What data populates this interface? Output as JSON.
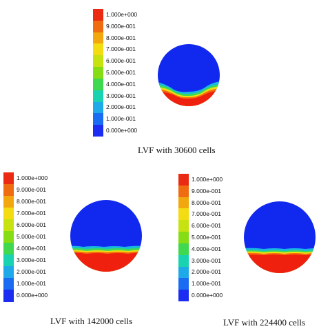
{
  "figure": {
    "panels": [
      {
        "caption": "LVF with 30600 cells",
        "colorbar_ticks": [
          "1.000e+000",
          "9.000e-001",
          "8.000e-001",
          "7.000e-001",
          "6.000e-001",
          "5.000e-001",
          "4.000e-001",
          "3.000e-001",
          "2.000e-001",
          "1.000e-001",
          "0.000e+000"
        ]
      },
      {
        "caption": "LVF with 142000 cells",
        "colorbar_ticks": [
          "1.000e+000",
          "9.000e-001",
          "8.000e-001",
          "7.000e-001",
          "6.000e-001",
          "5.000e-001",
          "4.000e-001",
          "3.000e-001",
          "2.000e-001",
          "1.000e-001",
          "0.000e+000"
        ]
      },
      {
        "caption": "LVF with 224400 cells",
        "colorbar_ticks": [
          "1.000e+000",
          "9.000e-001",
          "8.000e-001",
          "7.000e-001",
          "6.000e-001",
          "5.000e-001",
          "4.000e-001",
          "3.000e-001",
          "2.000e-001",
          "1.000e-001",
          "0.000e+000"
        ]
      }
    ],
    "colorbar_colors": [
      "#ea2a12",
      "#ef6c10",
      "#f2a70f",
      "#f3dc11",
      "#c6e211",
      "#86dd15",
      "#3fd84e",
      "#19d3b0",
      "#1eaae8",
      "#1a6cf2",
      "#1c2cf0"
    ],
    "colors": {
      "liquid": "#f0200e",
      "gas": "#1128ef",
      "interface_orange": "#f46e0c",
      "interface_yellow": "#f0e010",
      "interface_green": "#3cd95a",
      "interface_cyan": "#19d3c8"
    }
  }
}
